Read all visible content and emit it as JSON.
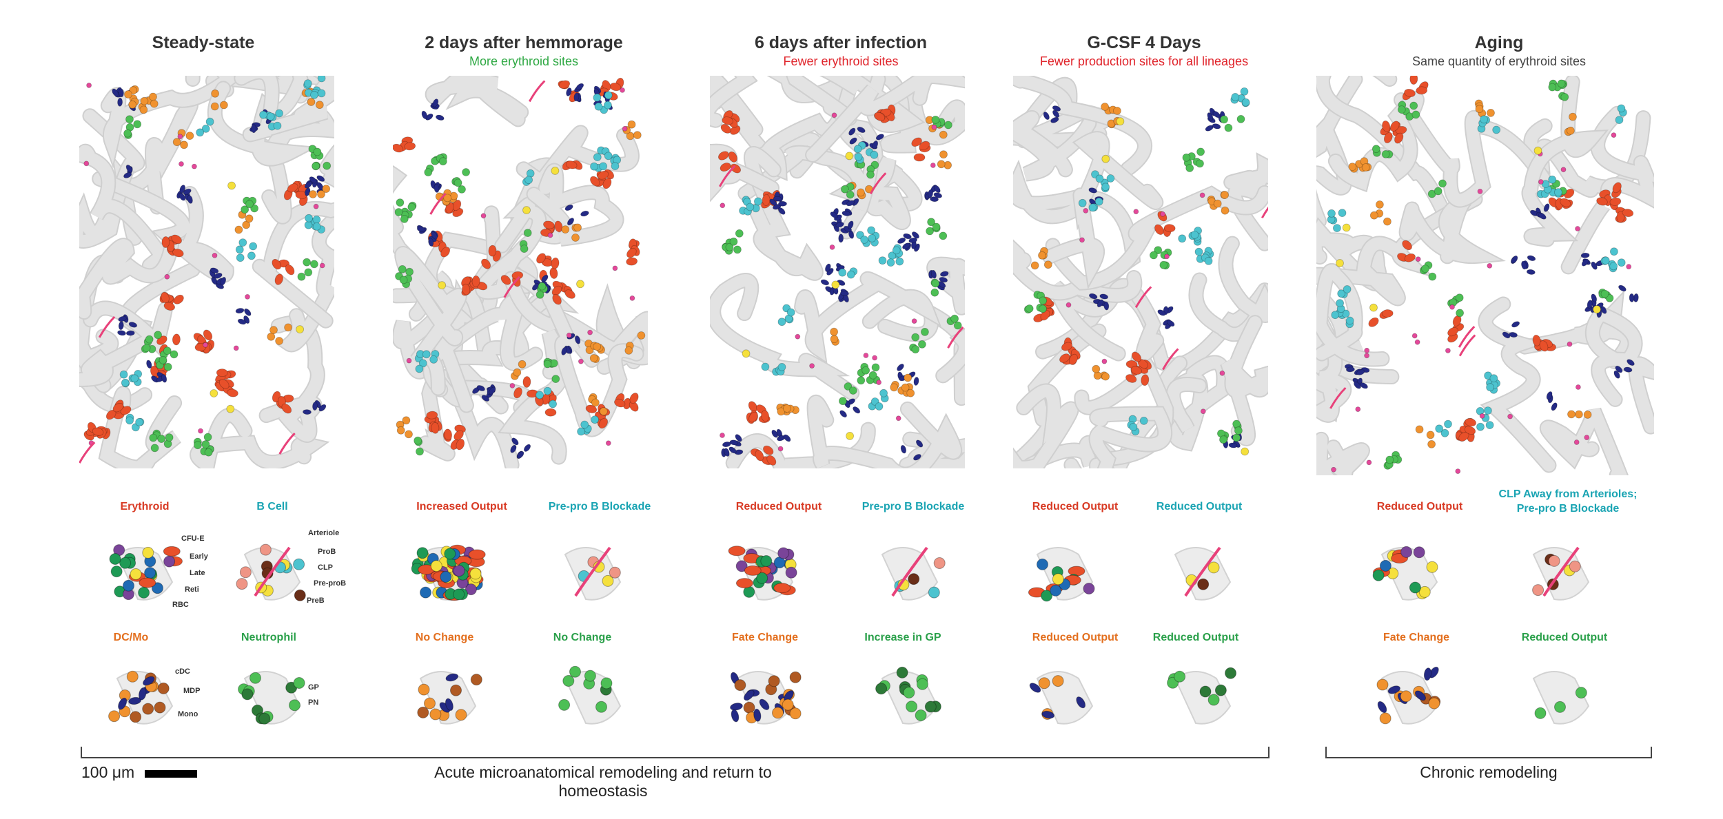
{
  "columns": [
    {
      "title": "Steady-state",
      "subtitle": "",
      "subtitle_color": "gray"
    },
    {
      "title": "2 days after hemmorage",
      "subtitle": "More erythroid sites",
      "subtitle_color": "green"
    },
    {
      "title": "6 days after infection",
      "subtitle": "Fewer erythroid sites",
      "subtitle_color": "red"
    },
    {
      "title": "G-CSF 4 Days",
      "subtitle": "Fewer production sites for all lineages",
      "subtitle_color": "red"
    },
    {
      "title": "Aging",
      "subtitle": "Same quantity of erythroid sites",
      "subtitle_color": "gray"
    }
  ],
  "lineage_labels": [
    {
      "top_left": "Erythroid",
      "top_right": "B Cell",
      "bottom_left": "DC/Mo",
      "bottom_right": "Neutrophil"
    },
    {
      "top_left": "Increased Output",
      "top_right": "Pre-pro B Blockade",
      "bottom_left": "No Change",
      "bottom_right": "No Change"
    },
    {
      "top_left": "Reduced Output",
      "top_right": "Pre-pro B Blockade",
      "bottom_left": "Fate Change",
      "bottom_right": "Increase in GP"
    },
    {
      "top_left": "Reduced Output",
      "top_right": "Reduced Output",
      "bottom_left": "Reduced Output",
      "bottom_right": "Reduced Output"
    },
    {
      "top_left": "Reduced Output",
      "top_right": "CLP Away from Arterioles;\nPre-pro B Blockade",
      "bottom_left": "Fate Change",
      "bottom_right": "Reduced Output"
    }
  ],
  "cell_labels": {
    "erythroid": [
      "CFU-E",
      "Early",
      "Late",
      "Reti",
      "RBC"
    ],
    "bcell": [
      "Arteriole",
      "ProB",
      "CLP",
      "Pre-proB",
      "PreB"
    ],
    "dcmo": [
      "cDC",
      "MDP",
      "Mono"
    ],
    "neutrophil": [
      "GP",
      "PN"
    ]
  },
  "scale_bar": {
    "label": "100 μm"
  },
  "brackets": {
    "acute": "Acute microanatomical remodeling and return to homeostasis",
    "chronic": "Chronic remodeling"
  },
  "colors": {
    "vessel": "#e3e3e3",
    "erythroid": "#e8502a",
    "cdc": "#242a85",
    "mono": "#f0922f",
    "mdp": "#b05a23",
    "gp": "#4dbf55",
    "cyan": "#4cc3cf",
    "pink": "#e4489a",
    "yellow": "#f5e03c",
    "blue": "#1f6ab4",
    "purple": "#7a4499",
    "brown": "#6a2e18",
    "salmon": "#ef9585",
    "arteriole": "#e8417a"
  }
}
